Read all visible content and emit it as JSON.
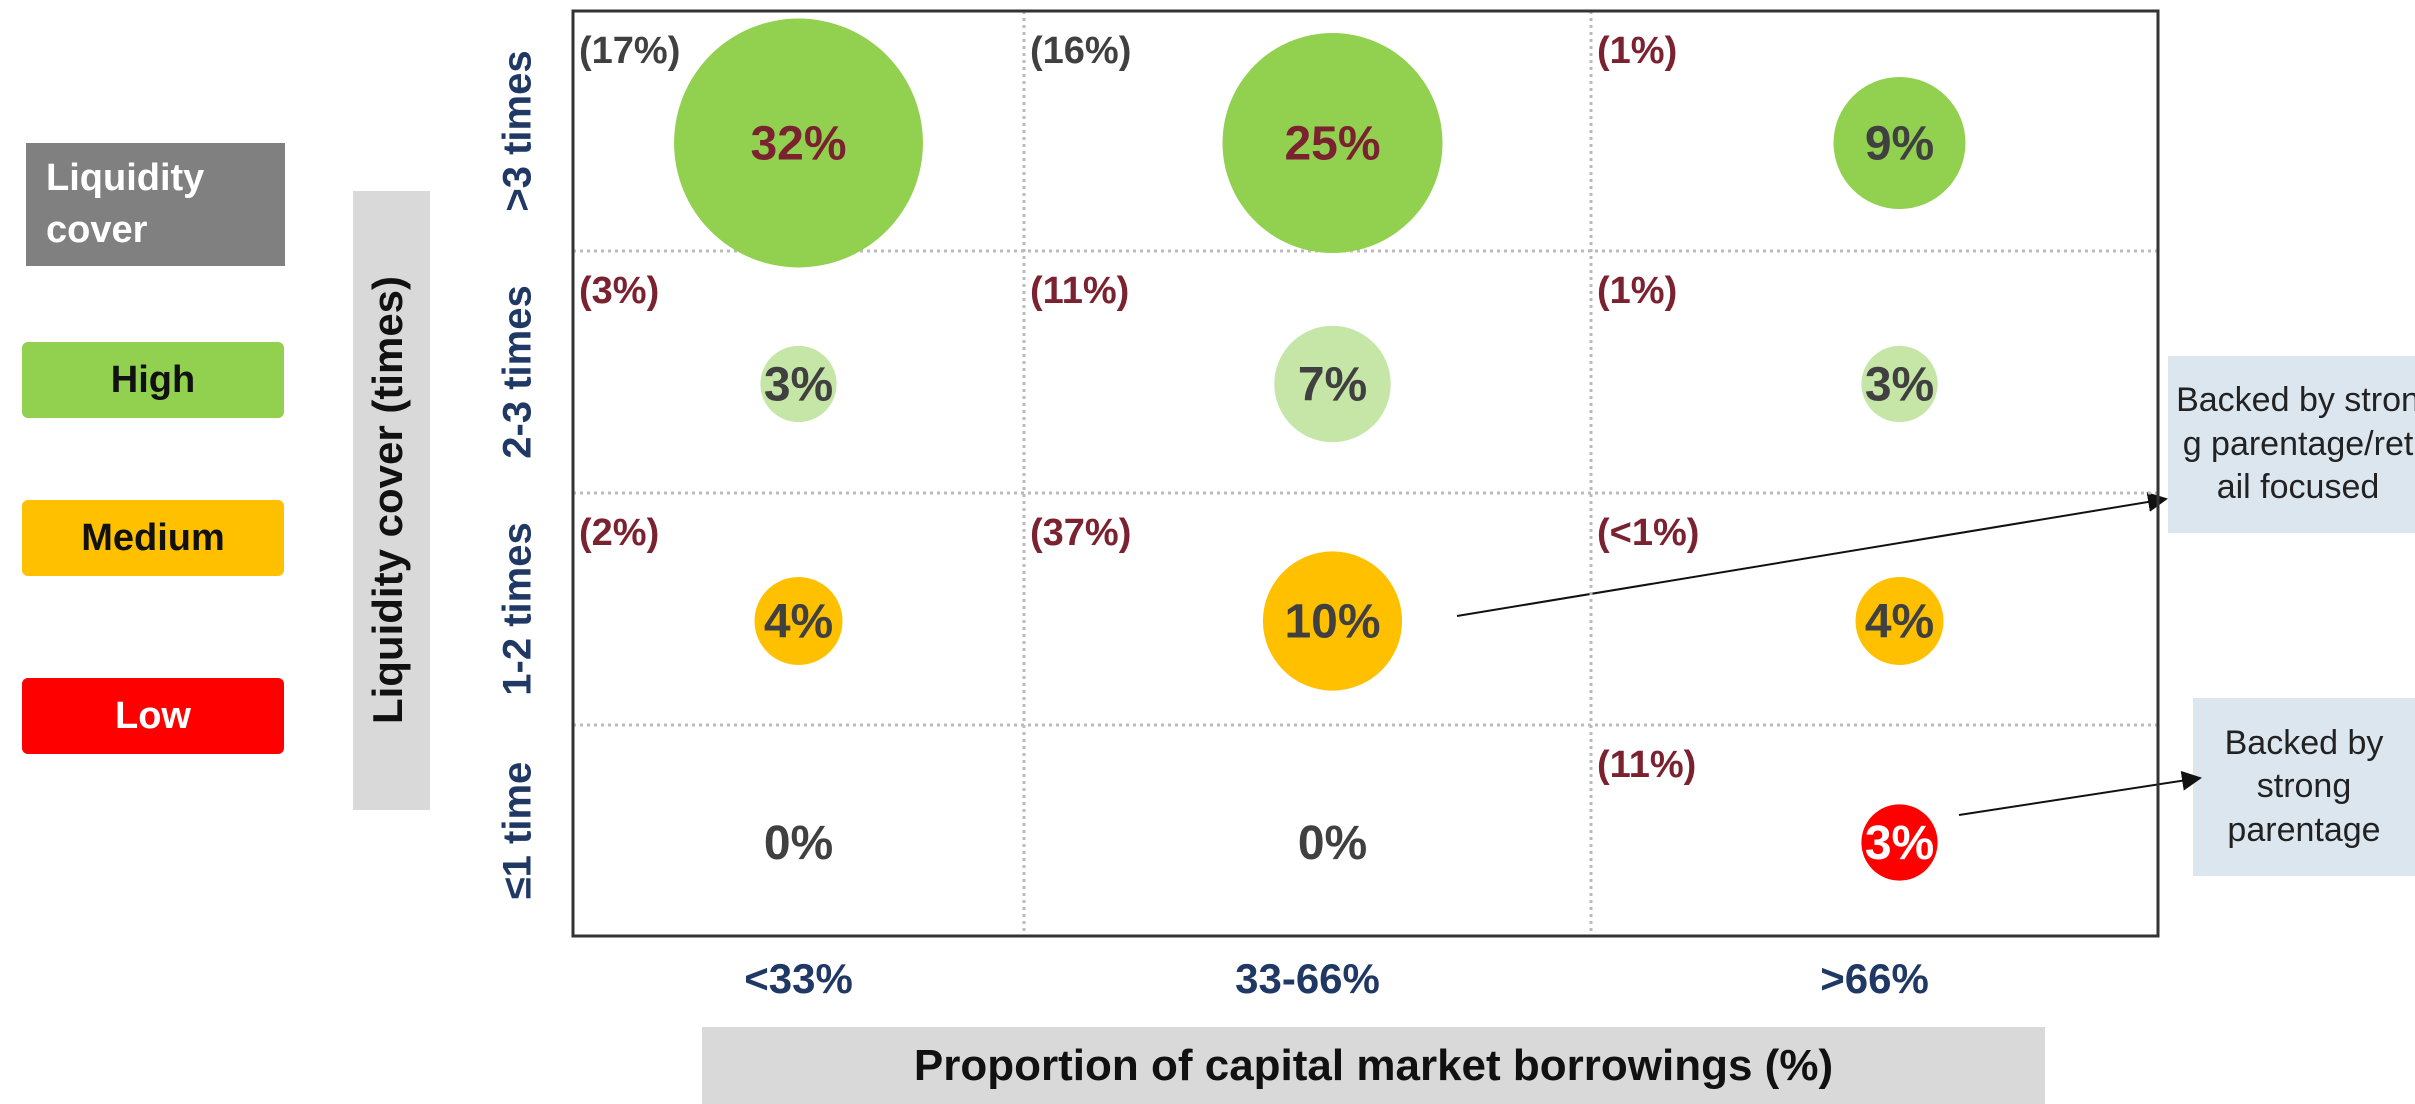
{
  "chart_data": {
    "type": "bubble-matrix",
    "xlabel": "Proportion of capital market borrowings (%)",
    "ylabel": "Liquidity cover (times)",
    "legend_title": "Liquidity cover",
    "legend": [
      {
        "name": "High",
        "color": "#92d050"
      },
      {
        "name": "Medium",
        "color": "#ffc000"
      },
      {
        "name": "Low",
        "color": "#ff0000"
      }
    ],
    "x_categories": [
      "<33%",
      "33-66%",
      ">66%"
    ],
    "y_categories": [
      ">3 times",
      "2-3 times",
      "1-2 times",
      "≤1 time"
    ],
    "points": [
      {
        "x": "<33%",
        "y": ">3 times",
        "value": 32,
        "value_label": "32%",
        "note": "(17%)",
        "color": "#92d050",
        "label_color": "#7b2230",
        "note_color": "#404040"
      },
      {
        "x": "33-66%",
        "y": ">3 times",
        "value": 25,
        "value_label": "25%",
        "note": "(16%)",
        "color": "#92d050",
        "label_color": "#7b2230",
        "note_color": "#404040"
      },
      {
        "x": ">66%",
        "y": ">3 times",
        "value": 9,
        "value_label": "9%",
        "note": "(1%)",
        "color": "#92d050",
        "label_color": "#404040",
        "note_color": "#7b2230"
      },
      {
        "x": "<33%",
        "y": "2-3 times",
        "value": 3,
        "value_label": "3%",
        "note": "(3%)",
        "color": "#c5e6a6",
        "label_color": "#404040",
        "note_color": "#7b2230"
      },
      {
        "x": "33-66%",
        "y": "2-3 times",
        "value": 7,
        "value_label": "7%",
        "note": "(11%)",
        "color": "#c5e6a6",
        "label_color": "#404040",
        "note_color": "#7b2230"
      },
      {
        "x": ">66%",
        "y": "2-3 times",
        "value": 3,
        "value_label": "3%",
        "note": "(1%)",
        "color": "#c5e6a6",
        "label_color": "#404040",
        "note_color": "#7b2230"
      },
      {
        "x": "<33%",
        "y": "1-2 times",
        "value": 4,
        "value_label": "4%",
        "note": "(2%)",
        "color": "#ffc000",
        "label_color": "#404040",
        "note_color": "#7b2230"
      },
      {
        "x": "33-66%",
        "y": "1-2 times",
        "value": 10,
        "value_label": "10%",
        "note": "(37%)",
        "color": "#ffc000",
        "label_color": "#404040",
        "note_color": "#7b2230"
      },
      {
        "x": ">66%",
        "y": "1-2 times",
        "value": 4,
        "value_label": "4%",
        "note": "(<1%)",
        "color": "#ffc000",
        "label_color": "#404040",
        "note_color": "#7b2230"
      },
      {
        "x": "<33%",
        "y": "≤1 time",
        "value": 0,
        "value_label": "0%",
        "color": "#ffffff",
        "label_color": "#404040"
      },
      {
        "x": "33-66%",
        "y": "≤1 time",
        "value": 0,
        "value_label": "0%",
        "color": "#ffffff",
        "label_color": "#404040"
      },
      {
        "x": ">66%",
        "y": "≤1 time",
        "value": 3,
        "value_label": "3%",
        "note": "(11%)",
        "color": "#ff0000",
        "label_color": "#ffffff",
        "note_color": "#7b2230"
      }
    ],
    "annotations": [
      "Backed by strong parentage/retail focused",
      "Backed by strong parentage"
    ]
  }
}
